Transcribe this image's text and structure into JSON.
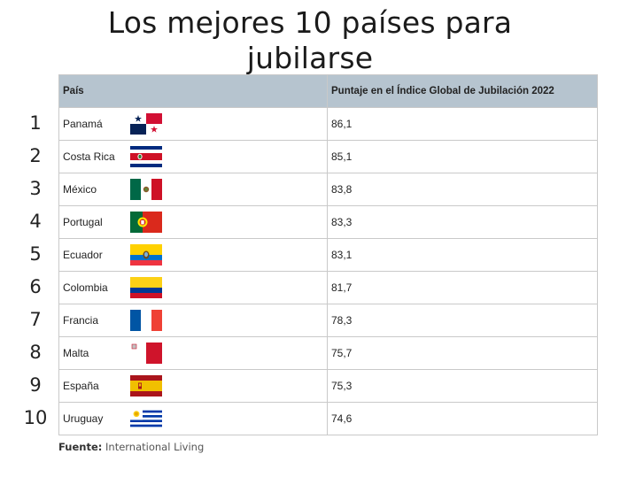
{
  "title_line1": "Los mejores 10 países para",
  "title_line2": "jubilarse",
  "table": {
    "headers": [
      "País",
      "Puntaje en el Índice Global de Jubilación 2022"
    ],
    "header_bg": "#b6c4cf",
    "rows": [
      {
        "rank": "1",
        "country": "Panamá",
        "score": "86,1",
        "flag": "panama-flag-icon"
      },
      {
        "rank": "2",
        "country": "Costa Rica",
        "score": "85,1",
        "flag": "costa-rica-flag-icon"
      },
      {
        "rank": "3",
        "country": "México",
        "score": "83,8",
        "flag": "mexico-flag-icon"
      },
      {
        "rank": "4",
        "country": "Portugal",
        "score": "83,3",
        "flag": "portugal-flag-icon"
      },
      {
        "rank": "5",
        "country": "Ecuador",
        "score": "83,1",
        "flag": "ecuador-flag-icon"
      },
      {
        "rank": "6",
        "country": "Colombia",
        "score": "81,7",
        "flag": "colombia-flag-icon"
      },
      {
        "rank": "7",
        "country": "Francia",
        "score": "78,3",
        "flag": "france-flag-icon"
      },
      {
        "rank": "8",
        "country": "Malta",
        "score": "75,7",
        "flag": "malta-flag-icon"
      },
      {
        "rank": "9",
        "country": "España",
        "score": "75,3",
        "flag": "spain-flag-icon"
      },
      {
        "rank": "10",
        "country": "Uruguay",
        "score": "74,6",
        "flag": "uruguay-flag-icon"
      }
    ]
  },
  "source": {
    "label": "Fuente:",
    "text": "International Living"
  }
}
